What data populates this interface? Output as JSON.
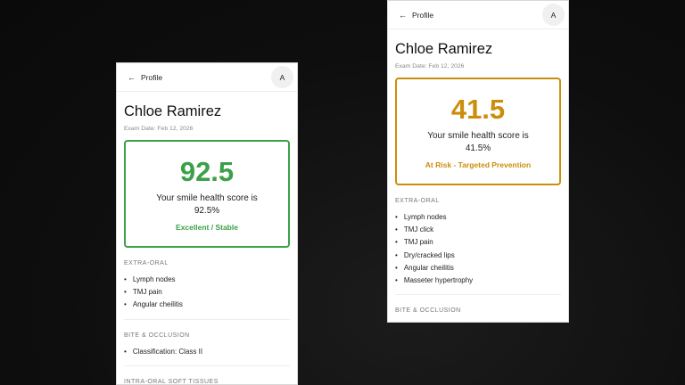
{
  "cards": [
    {
      "back_label": "Profile",
      "avatar": "A",
      "patient_name": "Chloe Ramirez",
      "exam_date": "Exam Date: Feb 12, 2026",
      "score": "92.5",
      "score_text": "Your smile health score is 92.5%",
      "status": "Excellent / Stable",
      "color": "#3ca04a",
      "sections": [
        {
          "label": "EXTRA-ORAL",
          "items": [
            "Lymph nodes",
            "TMJ pain",
            "Angular cheilitis"
          ]
        },
        {
          "label": "BITE & OCCLUSION",
          "items": [
            "Classification: Class II"
          ]
        },
        {
          "label": "INTRA-ORAL SOFT TISSUES",
          "items": []
        }
      ]
    },
    {
      "back_label": "Profile",
      "avatar": "A",
      "patient_name": "Chloe Ramirez",
      "exam_date": "Exam Date: Feb 12, 2026",
      "score": "41.5",
      "score_text": "Your smile health score is 41.5%",
      "status": "At Risk - Targeted Prevention",
      "color": "#cc8d0c",
      "sections": [
        {
          "label": "EXTRA-ORAL",
          "items": [
            "Lymph nodes",
            "TMJ click",
            "TMJ pain",
            "Dry/cracked lips",
            "Angular cheilitis",
            "Masseter hypertrophy"
          ]
        },
        {
          "label": "BITE & OCCLUSION",
          "items": []
        }
      ]
    }
  ],
  "icons": {
    "back": "arrow-left-icon"
  }
}
